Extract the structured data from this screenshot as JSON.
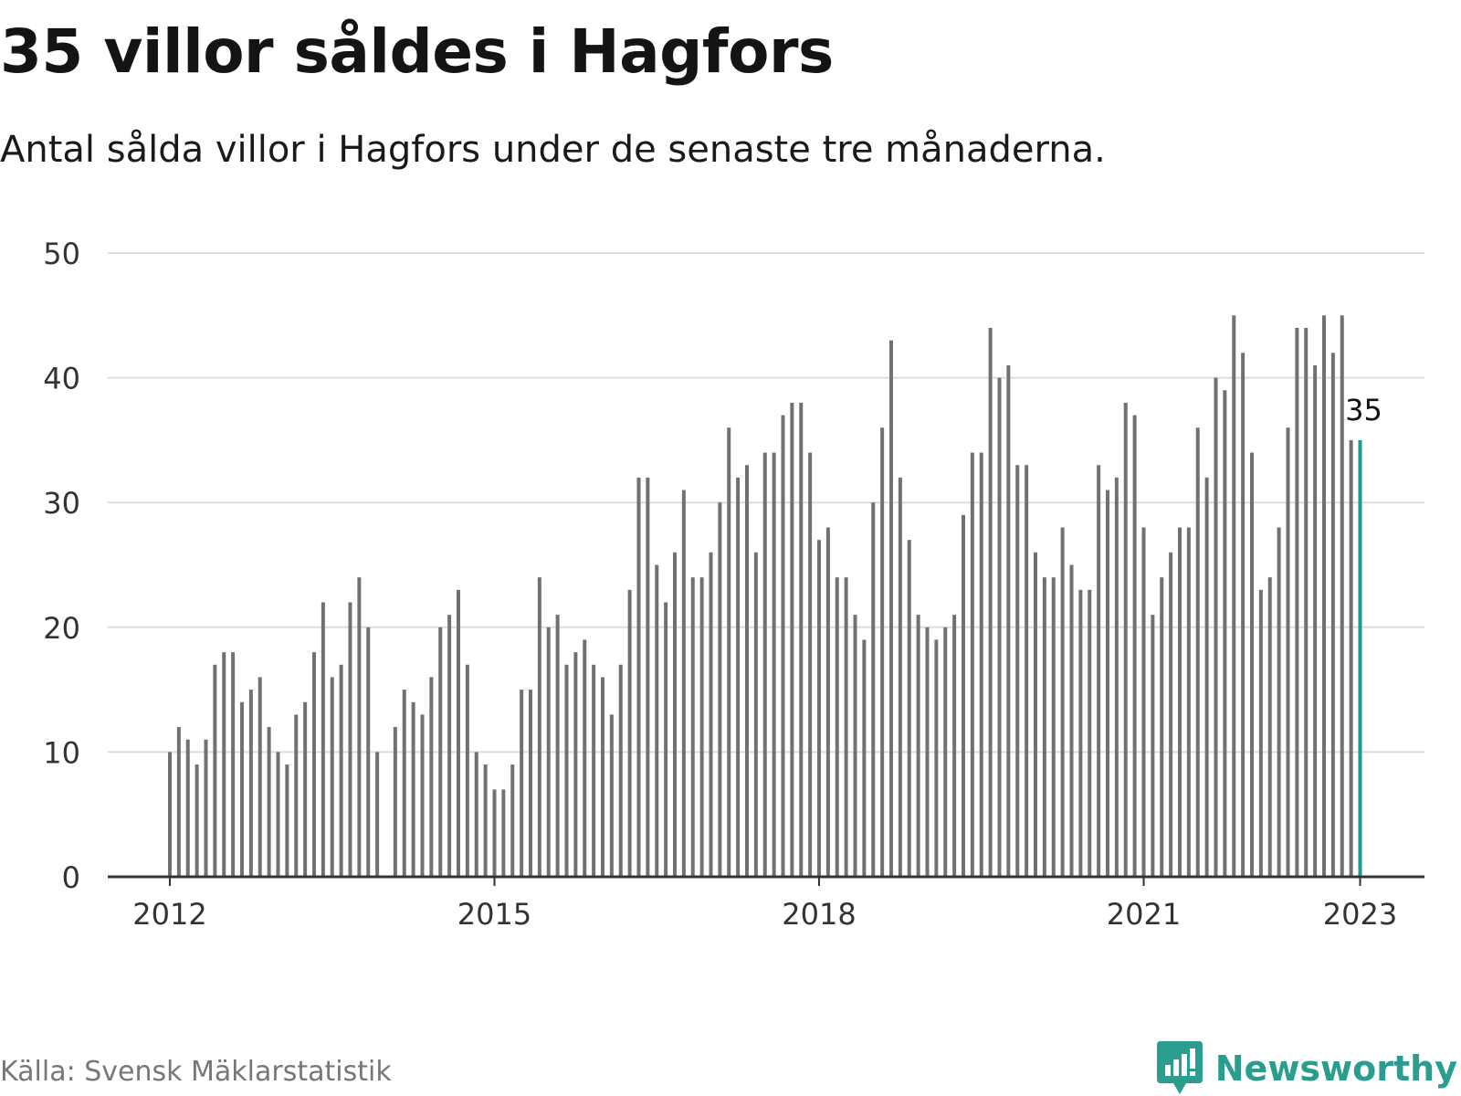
{
  "title": "35 villor såldes i Hagfors",
  "subtitle": "Antal sålda villor i Hagfors under de senaste tre månaderna.",
  "source": "Källa: Svensk Mäklarstatistik",
  "brand": "Newsworthy",
  "colors": {
    "bar": "#717171",
    "highlight": "#1a9e8f",
    "grid": "#dcdcdc",
    "axis": "#333333",
    "brand": "#2a9d8f"
  },
  "chart_data": {
    "type": "bar",
    "ylim": [
      0,
      50
    ],
    "yticks": [
      0,
      10,
      20,
      30,
      40,
      50
    ],
    "xticks": [
      {
        "label": "2012",
        "index": 0
      },
      {
        "label": "2015",
        "index": 36
      },
      {
        "label": "2018",
        "index": 72
      },
      {
        "label": "2021",
        "index": 108
      },
      {
        "label": "2023",
        "index": 132
      }
    ],
    "start": "2012-01",
    "end": "2023-01",
    "values": [
      10,
      12,
      11,
      9,
      11,
      17,
      18,
      18,
      14,
      15,
      16,
      12,
      10,
      9,
      13,
      14,
      18,
      22,
      16,
      17,
      22,
      24,
      20,
      10,
      null,
      12,
      15,
      14,
      13,
      16,
      20,
      21,
      23,
      17,
      10,
      9,
      7,
      7,
      9,
      15,
      15,
      24,
      20,
      21,
      17,
      18,
      19,
      17,
      16,
      13,
      17,
      23,
      32,
      32,
      25,
      22,
      26,
      31,
      24,
      24,
      26,
      30,
      36,
      32,
      33,
      26,
      34,
      34,
      37,
      38,
      38,
      34,
      27,
      28,
      24,
      24,
      21,
      19,
      30,
      36,
      43,
      32,
      27,
      21,
      20,
      19,
      20,
      21,
      29,
      34,
      34,
      44,
      40,
      41,
      33,
      33,
      26,
      24,
      24,
      28,
      25,
      23,
      23,
      33,
      31,
      32,
      38,
      37,
      28,
      21,
      24,
      26,
      28,
      28,
      36,
      32,
      40,
      39,
      45,
      42,
      34,
      23,
      24,
      28,
      36,
      44,
      44,
      41,
      45,
      42,
      45,
      35,
      35
    ],
    "highlight": {
      "index": 132,
      "value": 35,
      "label": "35"
    }
  }
}
